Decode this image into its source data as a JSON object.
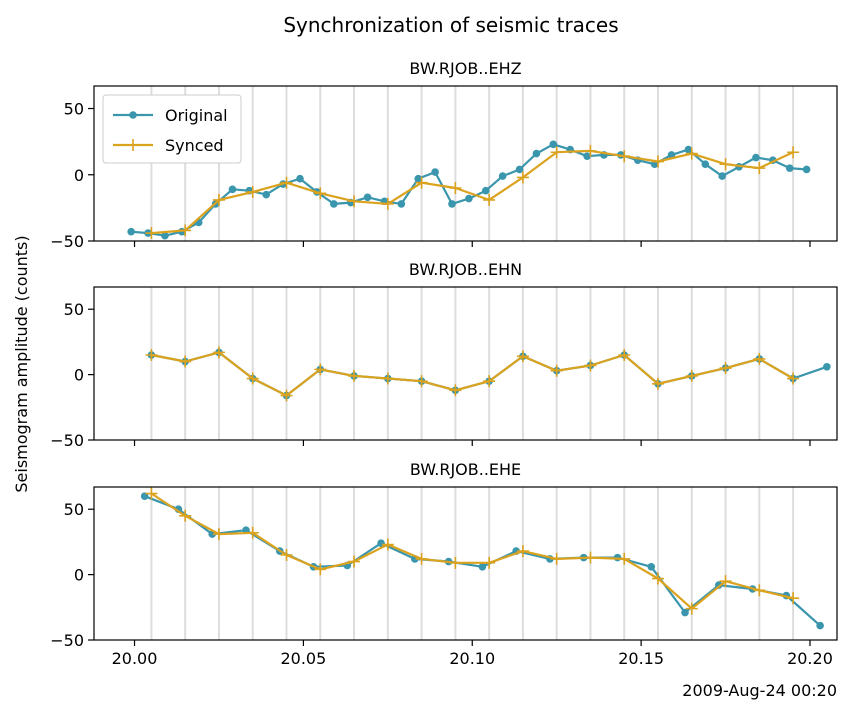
{
  "title": "Synchronization of seismic traces",
  "ylabel": "Seismogram amplitude (counts)",
  "offset_label": "2009-Aug-24 00:20",
  "colors": {
    "original": "#3a96ad",
    "synced": "#dba21e",
    "grid": "#dddddd"
  },
  "chart_data": {
    "type": "line",
    "xlim": [
      19.988,
      20.208
    ],
    "ylim": [
      -50,
      67
    ],
    "x_ticks": [
      20.0,
      20.05,
      20.1,
      20.15,
      20.2
    ],
    "x_tick_labels": [
      "20.00",
      "20.05",
      "20.10",
      "20.15",
      "20.20"
    ],
    "y_ticks": [
      -50,
      0,
      50
    ],
    "y_tick_labels": [
      "−50",
      "0",
      "50"
    ],
    "sync_lines": [
      20.005,
      20.015,
      20.025,
      20.035,
      20.045,
      20.055,
      20.065,
      20.075,
      20.085,
      20.095,
      20.105,
      20.115,
      20.125,
      20.135,
      20.145,
      20.155,
      20.165,
      20.175,
      20.185,
      20.195
    ],
    "legend": {
      "placement": "upper-left",
      "entries": [
        "Original",
        "Synced"
      ]
    },
    "panels": [
      {
        "subtitle": "BW.RJOB..EHZ",
        "show_legend": true,
        "series": [
          {
            "name": "Original",
            "marker": "dot",
            "x": [
              19.999,
              20.004,
              20.009,
              20.014,
              20.019,
              20.024,
              20.029,
              20.034,
              20.039,
              20.044,
              20.049,
              20.054,
              20.059,
              20.064,
              20.069,
              20.074,
              20.079,
              20.084,
              20.089,
              20.094,
              20.099,
              20.104,
              20.109,
              20.114,
              20.119,
              20.124,
              20.129,
              20.134,
              20.139,
              20.144,
              20.149,
              20.154,
              20.159,
              20.164,
              20.169,
              20.174,
              20.179,
              20.184,
              20.189,
              20.194,
              20.199
            ],
            "y": [
              -43,
              -44,
              -46,
              -43,
              -36,
              -22,
              -11,
              -12,
              -15,
              -7,
              -3,
              -13,
              -22,
              -21,
              -17,
              -20,
              -22,
              -3,
              2,
              -22,
              -18,
              -12,
              -1,
              4,
              16,
              23,
              19,
              14,
              15,
              15,
              11,
              8,
              15,
              19,
              8,
              -1,
              6,
              13,
              11,
              5,
              4
            ]
          },
          {
            "name": "Synced",
            "marker": "plus",
            "x": [
              20.005,
              20.015,
              20.025,
              20.035,
              20.045,
              20.055,
              20.065,
              20.075,
              20.085,
              20.095,
              20.105,
              20.115,
              20.125,
              20.135,
              20.145,
              20.155,
              20.165,
              20.175,
              20.185,
              20.195
            ],
            "y": [
              -44,
              -42,
              -19,
              -13,
              -6,
              -14,
              -20,
              -22,
              -6,
              -10,
              -19,
              -2,
              17,
              18,
              14,
              10,
              16,
              8,
              5,
              17
            ]
          }
        ]
      },
      {
        "subtitle": "BW.RJOB..EHN",
        "show_legend": false,
        "series": [
          {
            "name": "Original",
            "marker": "dot",
            "x": [
              20.005,
              20.015,
              20.025,
              20.035,
              20.045,
              20.055,
              20.065,
              20.075,
              20.085,
              20.095,
              20.105,
              20.115,
              20.125,
              20.135,
              20.145,
              20.155,
              20.165,
              20.175,
              20.185,
              20.195,
              20.205
            ],
            "y": [
              15,
              10,
              17,
              -3,
              -16,
              4,
              -1,
              -3,
              -5,
              -12,
              -5,
              14,
              3,
              7,
              15,
              -7,
              -1,
              5,
              12,
              -3,
              6
            ]
          },
          {
            "name": "Synced",
            "marker": "plus",
            "x": [
              20.005,
              20.015,
              20.025,
              20.035,
              20.045,
              20.055,
              20.065,
              20.075,
              20.085,
              20.095,
              20.105,
              20.115,
              20.125,
              20.135,
              20.145,
              20.155,
              20.165,
              20.175,
              20.185,
              20.195
            ],
            "y": [
              15,
              10,
              17,
              -3,
              -16,
              4,
              -1,
              -3,
              -5,
              -12,
              -5,
              14,
              3,
              7,
              15,
              -7,
              -1,
              5,
              12,
              -3
            ]
          }
        ]
      },
      {
        "subtitle": "BW.RJOB..EHE",
        "show_legend": false,
        "series": [
          {
            "name": "Original",
            "marker": "dot",
            "x": [
              20.003,
              20.013,
              20.023,
              20.033,
              20.043,
              20.053,
              20.063,
              20.073,
              20.083,
              20.093,
              20.103,
              20.113,
              20.123,
              20.133,
              20.143,
              20.153,
              20.163,
              20.173,
              20.183,
              20.193,
              20.203
            ],
            "y": [
              60,
              50,
              31,
              34,
              18,
              6,
              7,
              24,
              12,
              10,
              6,
              18,
              12,
              13,
              13,
              6,
              -29,
              -8,
              -11,
              -16,
              -39
            ]
          },
          {
            "name": "Synced",
            "marker": "plus",
            "x": [
              20.005,
              20.015,
              20.025,
              20.035,
              20.045,
              20.055,
              20.065,
              20.075,
              20.085,
              20.095,
              20.105,
              20.115,
              20.125,
              20.135,
              20.145,
              20.155,
              20.165,
              20.175,
              20.185,
              20.195
            ],
            "y": [
              62,
              45,
              31,
              32,
              15,
              4,
              10,
              23,
              12,
              9,
              9,
              18,
              12,
              13,
              12,
              -3,
              -26,
              -5,
              -12,
              -18
            ]
          }
        ]
      }
    ]
  }
}
